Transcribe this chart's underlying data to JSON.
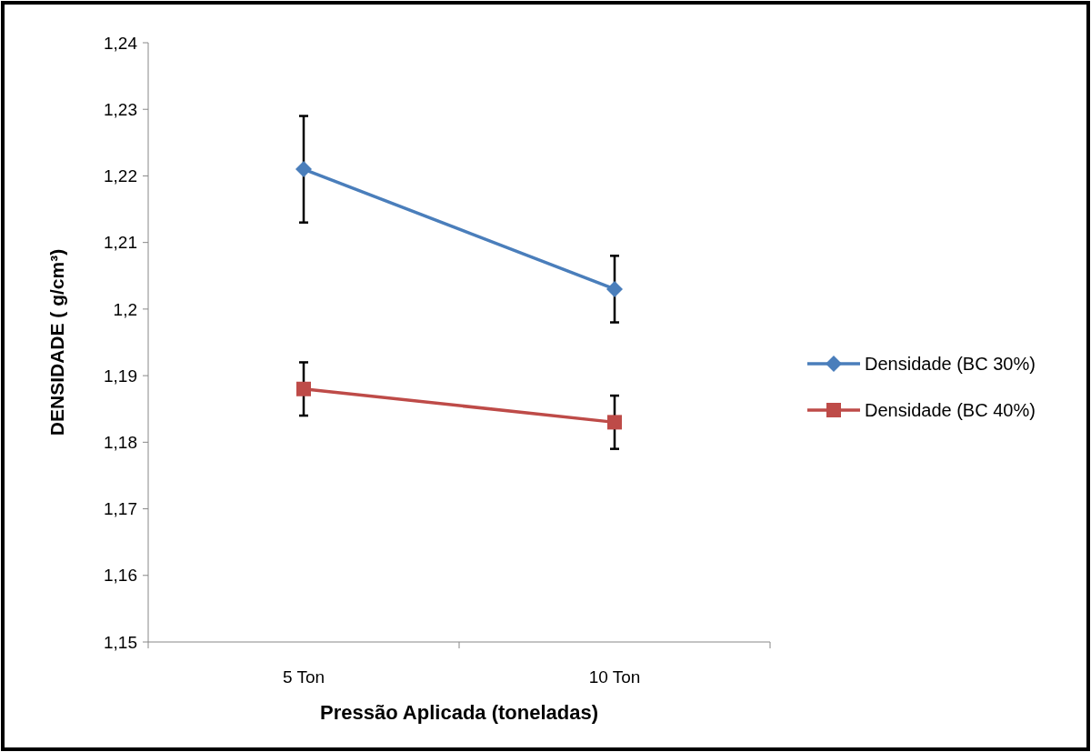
{
  "chart_data": {
    "type": "line",
    "xlabel": "Pressão Aplicada (toneladas)",
    "ylabel": "DENSIDADE ( g/cm³)",
    "categories": [
      "5 Ton",
      "10 Ton"
    ],
    "series": [
      {
        "name": "Densidade (BC 30%)",
        "color": "#4a7ebb",
        "marker": "diamond",
        "values": [
          1.221,
          1.203
        ],
        "errors": [
          [
            1.213,
            1.229
          ],
          [
            1.198,
            1.208
          ]
        ]
      },
      {
        "name": "Densidade (BC 40%)",
        "color": "#be4b48",
        "marker": "square",
        "values": [
          1.188,
          1.183
        ],
        "errors": [
          [
            1.184,
            1.192
          ],
          [
            1.179,
            1.187
          ]
        ]
      }
    ],
    "ylim": [
      1.15,
      1.24
    ],
    "yticks": [
      {
        "value": 1.15,
        "label": "1,15"
      },
      {
        "value": 1.16,
        "label": "1,16"
      },
      {
        "value": 1.17,
        "label": "1,17"
      },
      {
        "value": 1.18,
        "label": "1,18"
      },
      {
        "value": 1.19,
        "label": "1,19"
      },
      {
        "value": 1.2,
        "label": "1,2"
      },
      {
        "value": 1.21,
        "label": "1,21"
      },
      {
        "value": 1.22,
        "label": "1,22"
      },
      {
        "value": 1.23,
        "label": "1,23"
      },
      {
        "value": 1.24,
        "label": "1,24"
      }
    ],
    "grid": false,
    "legend": "right"
  }
}
